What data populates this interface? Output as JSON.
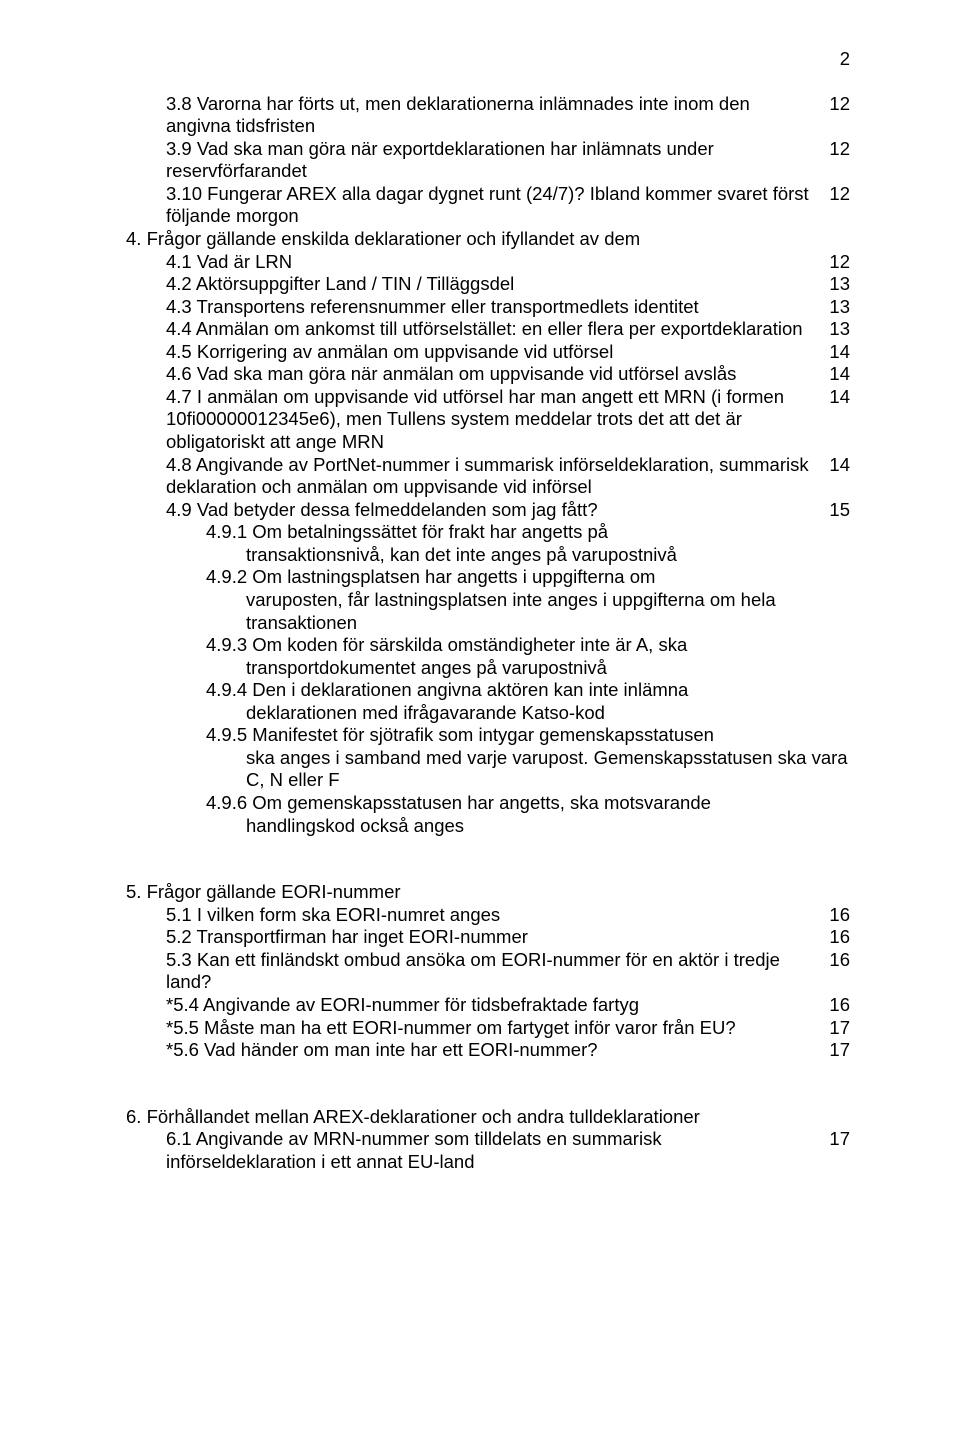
{
  "page_number": "2",
  "colors": {
    "text": "#000000",
    "background": "#ffffff"
  },
  "typography": {
    "font_family": "Arial",
    "font_size_pt": 14,
    "line_height": 1.22
  },
  "block1": {
    "items": [
      {
        "indent": "ind1",
        "text": "3.8 Varorna har förts ut, men deklarationerna inlämnades inte inom den angivna tidsfristen",
        "page": "12",
        "wrap_indent": "ind-sub"
      },
      {
        "indent": "ind1",
        "text": "3.9 Vad ska man göra när exportdeklarationen har inlämnats under reservförfarandet",
        "page": "12",
        "wrap_indent": "ind-sub"
      },
      {
        "indent": "ind1",
        "text": "3.10 Fungerar AREX alla dagar dygnet runt (24/7)? Ibland kommer svaret först följande morgon",
        "page": "12",
        "wrap_indent": "ind-sub"
      }
    ]
  },
  "block2": {
    "heading": "4. Frågor gällande enskilda deklarationer och ifyllandet av dem",
    "items": [
      {
        "indent": "ind1",
        "text": "4.1 Vad är LRN",
        "page": "12"
      },
      {
        "indent": "ind1",
        "text": "4.2 Aktörsuppgifter Land / TIN / Tilläggsdel",
        "page": "13"
      },
      {
        "indent": "ind1",
        "text": "4.3 Transportens referensnummer eller transportmedlets identitet",
        "page": "13"
      },
      {
        "indent": "ind1",
        "text": "4.4 Anmälan om ankomst till utförselstället: en eller flera per exportdeklaration",
        "page": "13"
      },
      {
        "indent": "ind1",
        "text": "4.5 Korrigering av anmälan om uppvisande vid utförsel",
        "page": "14"
      },
      {
        "indent": "ind1",
        "text": "4.6 Vad ska man göra när anmälan om uppvisande vid utförsel avslås",
        "page": "14"
      },
      {
        "indent": "ind1",
        "text": "4.7 I anmälan om uppvisande vid utförsel har man angett ett MRN (i formen 10fi00000012345e6), men Tullens system meddelar trots det att det är obligatoriskt att ange MRN",
        "page": "14",
        "wrap_indent": "ind-sub"
      },
      {
        "indent": "ind1",
        "text": "4.8 Angivande av PortNet-nummer i summarisk införseldeklaration, summarisk deklaration och anmälan om uppvisande vid införsel",
        "page": "14"
      },
      {
        "indent": "ind1",
        "text": "4.9 Vad betyder dessa felmeddelanden som jag fått?",
        "page": "15"
      }
    ],
    "subitems": [
      {
        "head": "4.9.1 Om betalningssättet för frakt har angetts på",
        "body": "transaktionsnivå, kan det inte anges på varupostnivå"
      },
      {
        "head": "4.9.2 Om lastningsplatsen har angetts i uppgifterna om",
        "body": "varuposten, får lastningsplatsen inte anges i uppgifterna om hela transaktionen"
      },
      {
        "head": "4.9.3 Om koden för särskilda omständigheter inte är A, ska",
        "body": "transportdokumentet anges på varupostnivå"
      },
      {
        "head": "4.9.4 Den i deklarationen angivna aktören kan inte inlämna",
        "body": "deklarationen med ifrågavarande Katso-kod"
      },
      {
        "head": "4.9.5 Manifestet för sjötrafik som intygar gemenskapsstatusen",
        "body": "ska anges i samband med varje varupost. Gemenskapsstatusen ska vara C, N eller F"
      },
      {
        "head": "4.9.6 Om gemenskapsstatusen har angetts, ska motsvarande",
        "body": "handlingskod också anges"
      }
    ]
  },
  "block3": {
    "heading": "5. Frågor gällande EORI-nummer",
    "items": [
      {
        "indent": "ind1",
        "text": "5.1 I vilken form ska EORI-numret anges",
        "page": "16"
      },
      {
        "indent": "ind1",
        "text": "5.2 Transportfirman har inget EORI-nummer",
        "page": "16"
      },
      {
        "indent": "ind1",
        "text": "5.3 Kan ett finländskt ombud ansöka om EORI-nummer för en aktör i tredje land?",
        "page": "16"
      },
      {
        "indent": "ind1",
        "text": "*5.4 Angivande av EORI-nummer för tidsbefraktade fartyg",
        "page": "16"
      },
      {
        "indent": "ind1",
        "text": "*5.5 Måste man ha ett EORI-nummer om fartyget inför varor från EU?",
        "page": "17"
      },
      {
        "indent": "ind1",
        "text": "*5.6 Vad händer om man inte har ett EORI-nummer?",
        "page": "17"
      }
    ]
  },
  "block4": {
    "heading": "6. Förhållandet mellan AREX-deklarationer och andra tulldeklarationer",
    "items": [
      {
        "indent": "ind1",
        "text": "6.1 Angivande av MRN-nummer som tilldelats en summarisk införseldeklaration i ett annat EU-land",
        "page": "17"
      }
    ]
  }
}
